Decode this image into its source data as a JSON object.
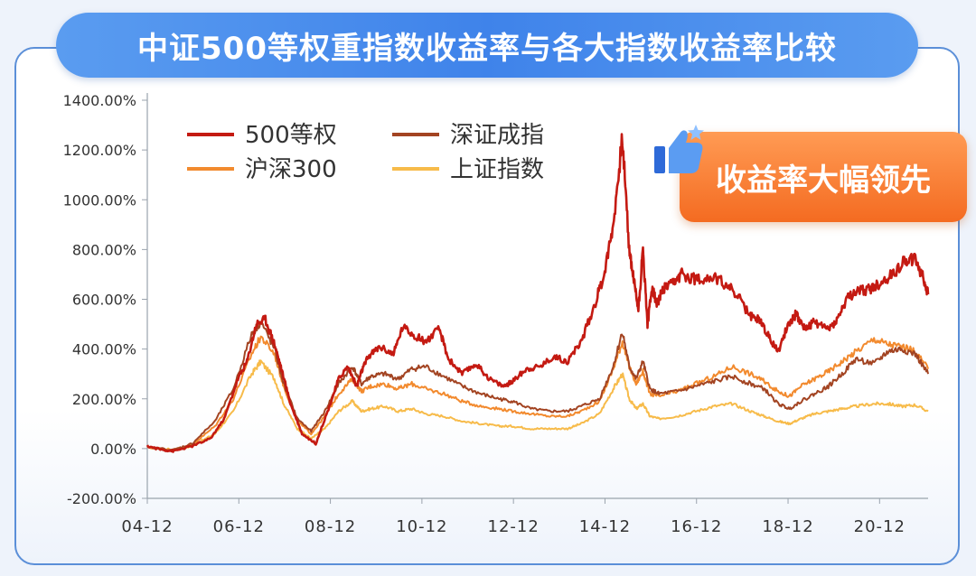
{
  "header": {
    "title": "中证500等权重指数收益率与各大指数收益率比较"
  },
  "badge": {
    "text": "收益率大幅领先",
    "icon": "thumbs-up-icon"
  },
  "colors": {
    "accent": "#4a8ded",
    "badge": "#f4792a"
  },
  "chart_data": {
    "type": "line",
    "title": "中证500等权重指数收益率与各大指数收益率比较",
    "xlabel": "",
    "ylabel": "",
    "x_ticks": [
      "04-12",
      "06-12",
      "08-12",
      "10-12",
      "12-12",
      "14-12",
      "16-12",
      "18-12",
      "20-12"
    ],
    "y_ticks": [
      "-200.00%",
      "0.00%",
      "200.00%",
      "400.00%",
      "600.00%",
      "800.00%",
      "1000.00%",
      "1200.00%",
      "1400.00%"
    ],
    "ylim": [
      -200,
      1400
    ],
    "xlim": [
      2004.92,
      2021.98
    ],
    "grid": false,
    "legend_position": "top-left",
    "legend_layout": [
      [
        0,
        2
      ],
      [
        1,
        3
      ]
    ],
    "series": [
      {
        "name": "500等权",
        "color": "#c41a12",
        "width": 2.6,
        "order": 4,
        "x": [
          2004.92,
          2005.25,
          2005.5,
          2005.9,
          2006.3,
          2006.6,
          2006.9,
          2007.1,
          2007.3,
          2007.5,
          2007.7,
          2007.85,
          2008.05,
          2008.3,
          2008.6,
          2008.9,
          2009.1,
          2009.3,
          2009.5,
          2009.6,
          2009.75,
          2010.0,
          2010.3,
          2010.5,
          2010.8,
          2011.0,
          2011.3,
          2011.5,
          2011.8,
          2012.1,
          2012.4,
          2012.7,
          2012.9,
          2013.2,
          2013.5,
          2013.8,
          2014.1,
          2014.4,
          2014.7,
          2014.9,
          2015.1,
          2015.3,
          2015.45,
          2015.55,
          2015.65,
          2015.75,
          2015.85,
          2015.95,
          2016.05,
          2016.2,
          2016.4,
          2016.6,
          2016.9,
          2017.2,
          2017.5,
          2017.8,
          2018.1,
          2018.3,
          2018.5,
          2018.7,
          2018.95,
          2019.1,
          2019.3,
          2019.5,
          2019.8,
          2020.0,
          2020.2,
          2020.4,
          2020.7,
          2020.9,
          2021.2,
          2021.5,
          2021.7,
          2021.85,
          2021.98
        ],
        "y": [
          10,
          -5,
          -10,
          10,
          40,
          120,
          280,
          350,
          500,
          520,
          420,
          320,
          180,
          60,
          20,
          170,
          280,
          330,
          250,
          310,
          370,
          410,
          380,
          490,
          450,
          430,
          480,
          360,
          300,
          340,
          280,
          250,
          270,
          320,
          330,
          370,
          350,
          430,
          580,
          700,
          900,
          1250,
          800,
          680,
          560,
          800,
          500,
          650,
          580,
          640,
          660,
          700,
          680,
          690,
          670,
          620,
          530,
          520,
          450,
          390,
          510,
          540,
          480,
          510,
          480,
          520,
          600,
          630,
          640,
          660,
          700,
          760,
          760,
          700,
          620
        ]
      },
      {
        "name": "深证成指",
        "color": "#a34422",
        "width": 2.0,
        "order": 3,
        "x": [
          2004.92,
          2005.5,
          2005.9,
          2006.4,
          2006.8,
          2007.2,
          2007.4,
          2007.7,
          2007.9,
          2008.2,
          2008.5,
          2008.8,
          2009.1,
          2009.4,
          2009.6,
          2009.8,
          2010.1,
          2010.4,
          2010.7,
          2011.0,
          2011.4,
          2011.8,
          2012.2,
          2012.6,
          2012.9,
          2013.3,
          2013.7,
          2014.1,
          2014.4,
          2014.8,
          2015.1,
          2015.3,
          2015.45,
          2015.6,
          2015.75,
          2015.9,
          2016.1,
          2016.5,
          2016.9,
          2017.3,
          2017.7,
          2018.1,
          2018.4,
          2018.7,
          2018.95,
          2019.2,
          2019.5,
          2019.8,
          2020.1,
          2020.4,
          2020.8,
          2021.1,
          2021.4,
          2021.7,
          2021.98
        ],
        "y": [
          5,
          -5,
          20,
          110,
          240,
          460,
          510,
          400,
          260,
          120,
          70,
          150,
          260,
          330,
          260,
          290,
          300,
          280,
          320,
          330,
          290,
          250,
          220,
          200,
          190,
          160,
          150,
          150,
          170,
          200,
          330,
          470,
          330,
          280,
          350,
          240,
          220,
          230,
          250,
          270,
          290,
          260,
          240,
          180,
          160,
          190,
          220,
          250,
          300,
          360,
          340,
          390,
          400,
          380,
          300
        ]
      },
      {
        "name": "沪深300",
        "color": "#f28a2e",
        "width": 2.0,
        "order": 2,
        "x": [
          2004.92,
          2005.5,
          2005.9,
          2006.4,
          2006.8,
          2007.2,
          2007.4,
          2007.7,
          2007.9,
          2008.2,
          2008.5,
          2008.8,
          2009.1,
          2009.4,
          2009.6,
          2009.8,
          2010.1,
          2010.4,
          2010.7,
          2011.0,
          2011.4,
          2011.8,
          2012.2,
          2012.6,
          2012.9,
          2013.3,
          2013.7,
          2014.1,
          2014.4,
          2014.8,
          2015.1,
          2015.3,
          2015.45,
          2015.6,
          2015.75,
          2015.9,
          2016.1,
          2016.5,
          2016.9,
          2017.3,
          2017.7,
          2018.1,
          2018.4,
          2018.7,
          2018.95,
          2019.2,
          2019.5,
          2019.8,
          2020.1,
          2020.4,
          2020.8,
          2021.1,
          2021.4,
          2021.7,
          2021.98
        ],
        "y": [
          5,
          -5,
          15,
          90,
          200,
          380,
          450,
          380,
          250,
          110,
          60,
          130,
          220,
          280,
          230,
          250,
          260,
          240,
          260,
          240,
          220,
          190,
          170,
          160,
          150,
          140,
          130,
          130,
          150,
          190,
          320,
          430,
          330,
          260,
          310,
          220,
          210,
          230,
          260,
          290,
          330,
          300,
          270,
          230,
          210,
          250,
          280,
          310,
          350,
          390,
          440,
          420,
          410,
          390,
          320
        ]
      },
      {
        "name": "上证指数",
        "color": "#f7bb4a",
        "width": 2.0,
        "order": 1,
        "x": [
          2004.92,
          2005.5,
          2005.9,
          2006.4,
          2006.8,
          2007.2,
          2007.4,
          2007.7,
          2007.9,
          2008.2,
          2008.5,
          2008.8,
          2009.1,
          2009.4,
          2009.6,
          2009.8,
          2010.1,
          2010.4,
          2010.7,
          2011.0,
          2011.4,
          2011.8,
          2012.2,
          2012.6,
          2012.9,
          2013.3,
          2013.7,
          2014.1,
          2014.4,
          2014.8,
          2015.1,
          2015.3,
          2015.45,
          2015.6,
          2015.75,
          2015.9,
          2016.1,
          2016.5,
          2016.9,
          2017.3,
          2017.7,
          2018.1,
          2018.4,
          2018.7,
          2018.95,
          2019.2,
          2019.5,
          2019.8,
          2020.1,
          2020.4,
          2020.8,
          2021.1,
          2021.4,
          2021.7,
          2021.98
        ],
        "y": [
          5,
          -5,
          10,
          60,
          150,
          300,
          350,
          280,
          180,
          80,
          40,
          80,
          150,
          190,
          150,
          160,
          170,
          150,
          160,
          140,
          130,
          110,
          100,
          90,
          90,
          80,
          80,
          80,
          100,
          140,
          240,
          300,
          200,
          160,
          180,
          130,
          120,
          130,
          150,
          170,
          180,
          150,
          130,
          110,
          100,
          120,
          140,
          150,
          160,
          170,
          180,
          180,
          170,
          175,
          150
        ]
      }
    ]
  }
}
